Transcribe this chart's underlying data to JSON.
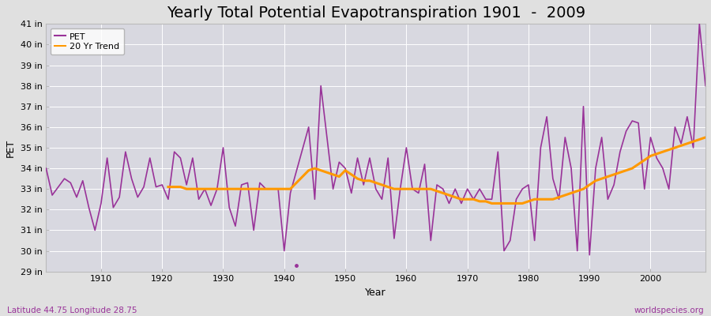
{
  "title": "Yearly Total Potential Evapotranspiration 1901  -  2009",
  "xlabel": "Year",
  "ylabel": "PET",
  "subtitle_left": "Latitude 44.75 Longitude 28.75",
  "subtitle_right": "worldspecies.org",
  "pet_color": "#993399",
  "trend_color": "#ff9900",
  "fig_facecolor": "#e0e0e0",
  "plot_facecolor": "#d8d8e0",
  "grid_color": "#ffffff",
  "ylim": [
    29,
    41
  ],
  "xlim": [
    1901,
    2009
  ],
  "ytick_values": [
    29,
    30,
    31,
    32,
    33,
    34,
    35,
    36,
    37,
    38,
    39,
    40,
    41
  ],
  "ytick_labels": [
    "29 in",
    "30 in",
    "31 in",
    "32 in",
    "33 in",
    "34 in",
    "35 in",
    "36 in",
    "37 in",
    "38 in",
    "39 in",
    "40 in",
    "41 in"
  ],
  "xtick_values": [
    1910,
    1920,
    1930,
    1940,
    1950,
    1960,
    1970,
    1980,
    1990,
    2000
  ],
  "years": [
    1901,
    1902,
    1903,
    1904,
    1905,
    1906,
    1907,
    1908,
    1909,
    1910,
    1911,
    1912,
    1913,
    1914,
    1915,
    1916,
    1917,
    1918,
    1919,
    1920,
    1921,
    1922,
    1923,
    1924,
    1925,
    1926,
    1927,
    1928,
    1929,
    1930,
    1931,
    1932,
    1933,
    1934,
    1935,
    1936,
    1937,
    1938,
    1939,
    1940,
    1941,
    1944,
    1945,
    1946,
    1947,
    1948,
    1949,
    1950,
    1951,
    1952,
    1953,
    1954,
    1955,
    1956,
    1957,
    1958,
    1959,
    1960,
    1961,
    1962,
    1963,
    1964,
    1965,
    1966,
    1967,
    1968,
    1969,
    1970,
    1971,
    1972,
    1973,
    1974,
    1975,
    1976,
    1977,
    1978,
    1979,
    1980,
    1981,
    1982,
    1983,
    1984,
    1985,
    1986,
    1987,
    1988,
    1989,
    1990,
    1991,
    1992,
    1993,
    1994,
    1995,
    1996,
    1997,
    1998,
    1999,
    2000,
    2001,
    2002,
    2003,
    2004,
    2005,
    2006,
    2007,
    2008,
    2009
  ],
  "pet_values": [
    34.0,
    32.7,
    33.1,
    33.5,
    33.3,
    32.6,
    33.4,
    32.1,
    31.0,
    32.3,
    34.5,
    32.1,
    32.6,
    34.8,
    33.5,
    32.6,
    33.1,
    34.5,
    33.1,
    33.2,
    32.5,
    34.8,
    34.5,
    33.2,
    34.5,
    32.5,
    33.0,
    32.2,
    33.0,
    35.0,
    32.1,
    31.2,
    33.2,
    33.3,
    31.0,
    33.3,
    33.0,
    33.0,
    33.0,
    30.0,
    32.8,
    36.0,
    32.5,
    38.0,
    35.5,
    33.0,
    34.3,
    34.0,
    32.8,
    34.5,
    33.2,
    34.5,
    33.0,
    32.5,
    34.5,
    30.6,
    33.0,
    35.0,
    33.0,
    32.8,
    34.2,
    30.5,
    33.2,
    33.0,
    32.3,
    33.0,
    32.3,
    33.0,
    32.5,
    33.0,
    32.5,
    32.5,
    34.8,
    30.0,
    30.5,
    32.5,
    33.0,
    33.2,
    30.5,
    35.0,
    36.5,
    33.5,
    32.5,
    35.5,
    34.0,
    30.0,
    37.0,
    29.8,
    34.0,
    35.5,
    32.5,
    33.2,
    34.8,
    35.8,
    36.3,
    36.2,
    33.0,
    35.5,
    34.5,
    34.0,
    33.0,
    36.0,
    35.2,
    36.5,
    35.0,
    41.0,
    38.0
  ],
  "dot_year": 1942,
  "dot_value": 29.3,
  "trend_years": [
    1921,
    1922,
    1923,
    1924,
    1925,
    1926,
    1927,
    1928,
    1929,
    1930,
    1931,
    1932,
    1933,
    1934,
    1935,
    1936,
    1937,
    1938,
    1939,
    1940,
    1941,
    1944,
    1945,
    1946,
    1947,
    1948,
    1949,
    1950,
    1951,
    1952,
    1953,
    1954,
    1955,
    1956,
    1957,
    1958,
    1959,
    1960,
    1961,
    1962,
    1963,
    1964,
    1965,
    1966,
    1967,
    1968,
    1969,
    1970,
    1971,
    1972,
    1973,
    1974,
    1975,
    1976,
    1977,
    1978,
    1979,
    1980,
    1981,
    1982,
    1983,
    1984,
    1985,
    1986,
    1987,
    1988,
    1989,
    1990,
    1991,
    1992,
    1993,
    1994,
    1995,
    1996,
    1997,
    1998,
    1999,
    2000,
    2001,
    2002,
    2003,
    2004,
    2005,
    2006,
    2007,
    2008,
    2009
  ],
  "trend_values": [
    33.1,
    33.1,
    33.1,
    33.0,
    33.0,
    33.0,
    33.0,
    33.0,
    33.0,
    33.0,
    33.0,
    33.0,
    33.0,
    33.0,
    33.0,
    33.0,
    33.0,
    33.0,
    33.0,
    33.0,
    33.0,
    33.9,
    34.0,
    33.9,
    33.8,
    33.7,
    33.6,
    33.9,
    33.7,
    33.5,
    33.4,
    33.4,
    33.3,
    33.2,
    33.1,
    33.0,
    33.0,
    33.0,
    33.0,
    33.0,
    33.0,
    33.0,
    32.9,
    32.8,
    32.7,
    32.6,
    32.5,
    32.5,
    32.5,
    32.4,
    32.4,
    32.3,
    32.3,
    32.3,
    32.3,
    32.3,
    32.3,
    32.4,
    32.5,
    32.5,
    32.5,
    32.5,
    32.6,
    32.7,
    32.8,
    32.9,
    33.0,
    33.2,
    33.4,
    33.5,
    33.6,
    33.7,
    33.8,
    33.9,
    34.0,
    34.2,
    34.4,
    34.6,
    34.7,
    34.8,
    34.9,
    35.0,
    35.1,
    35.2,
    35.3,
    35.4,
    35.5
  ],
  "legend_pet_label": "PET",
  "legend_trend_label": "20 Yr Trend",
  "title_fontsize": 14,
  "label_fontsize": 9,
  "tick_fontsize": 8,
  "legend_fontsize": 8
}
